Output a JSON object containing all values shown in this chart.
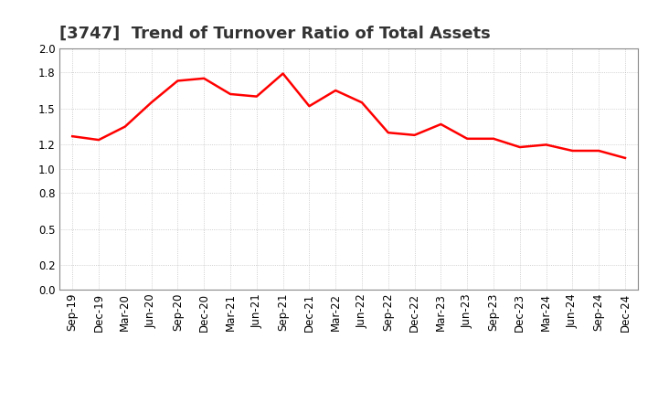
{
  "title": "[3747]  Trend of Turnover Ratio of Total Assets",
  "labels": [
    "Sep-19",
    "Dec-19",
    "Mar-20",
    "Jun-20",
    "Sep-20",
    "Dec-20",
    "Mar-21",
    "Jun-21",
    "Sep-21",
    "Dec-21",
    "Mar-22",
    "Jun-22",
    "Sep-22",
    "Dec-22",
    "Mar-23",
    "Jun-23",
    "Sep-23",
    "Dec-23",
    "Mar-24",
    "Jun-24",
    "Sep-24",
    "Dec-24"
  ],
  "values": [
    1.27,
    1.24,
    1.35,
    1.55,
    1.73,
    1.75,
    1.62,
    1.6,
    1.79,
    1.52,
    1.65,
    1.55,
    1.3,
    1.28,
    1.37,
    1.25,
    1.25,
    1.18,
    1.2,
    1.15,
    1.15,
    1.09
  ],
  "line_color": "#FF0000",
  "line_width": 1.8,
  "ylim": [
    0.0,
    2.0
  ],
  "ytick_vals": [
    0.0,
    0.2,
    0.5,
    0.8,
    1.0,
    1.2,
    1.5,
    1.8,
    2.0
  ],
  "background_color": "#FFFFFF",
  "plot_bg_color": "#FFFFFF",
  "grid_color": "#AAAAAA",
  "title_fontsize": 13,
  "tick_fontsize": 8.5,
  "title_color": "#333333"
}
